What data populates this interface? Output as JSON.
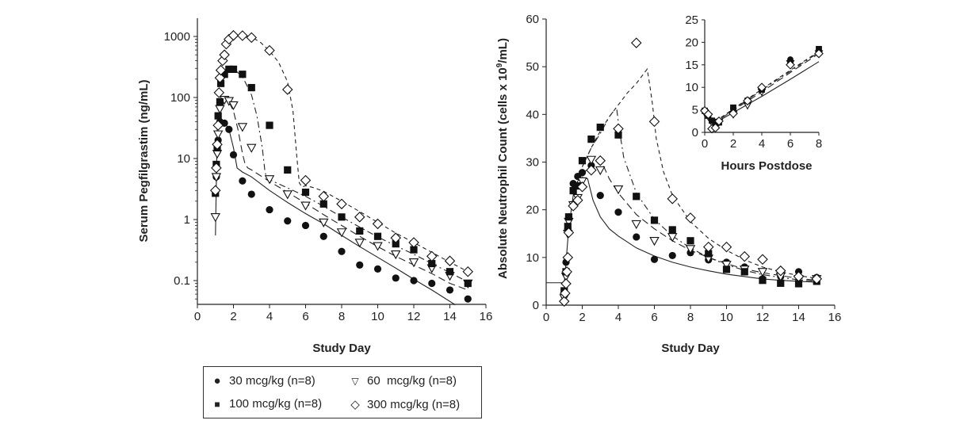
{
  "chart_data": [
    {
      "type": "scatter",
      "id": "pk",
      "title": "",
      "xlabel": "Study Day",
      "ylabel": "Serum Pegfilgrastim (ng/mL)",
      "yscale": "log",
      "xlim": [
        0,
        16
      ],
      "ylim": [
        0.04,
        2000
      ],
      "xticks": [
        0,
        2,
        4,
        6,
        8,
        10,
        12,
        14,
        16
      ],
      "yticks": [
        0.1,
        1,
        10,
        100,
        1000
      ],
      "ytick_labels": [
        "0.1",
        "1",
        "10",
        "100",
        "1000"
      ],
      "grid": false,
      "series": [
        {
          "name": "30 mcg/kg (n=8)",
          "marker": "circle",
          "x": [
            1,
            1.05,
            1.1,
            1.15,
            1.25,
            1.5,
            1.75,
            2,
            2.5,
            3,
            4,
            5,
            6,
            7,
            8,
            9,
            10,
            11,
            12,
            13,
            14,
            15
          ],
          "y": [
            3,
            5,
            13,
            20,
            40,
            38,
            30,
            11.5,
            4.3,
            2.6,
            1.45,
            0.95,
            0.8,
            0.53,
            0.3,
            0.18,
            0.155,
            0.11,
            0.1,
            0.09,
            0.07,
            0.05
          ],
          "fit_line": "solid",
          "fit_x": [
            1,
            1.1,
            1.3,
            1.5,
            1.75,
            2,
            2.2,
            2.5,
            3,
            4,
            5,
            6,
            7,
            8,
            9,
            10,
            11,
            12,
            13,
            14.3
          ],
          "fit_y": [
            0.55,
            30,
            45,
            40,
            30,
            15,
            7,
            6,
            5,
            3,
            1.9,
            1.25,
            0.85,
            0.55,
            0.36,
            0.24,
            0.16,
            0.105,
            0.07,
            0.04
          ]
        },
        {
          "name": "60 mcg/kg (n=8)",
          "marker": "triangle-down",
          "x": [
            1,
            1.05,
            1.1,
            1.15,
            1.25,
            1.5,
            1.75,
            2,
            2.5,
            3,
            4,
            5,
            6,
            7,
            8,
            9,
            10,
            11,
            12,
            13,
            14,
            15
          ],
          "y": [
            1.1,
            5,
            12,
            25,
            65,
            92,
            88,
            75,
            33,
            15,
            4.6,
            2.6,
            1.7,
            0.9,
            0.62,
            0.42,
            0.37,
            0.27,
            0.2,
            0.16,
            0.12,
            0.09
          ],
          "fit_line": "long-dash",
          "fit_x": [
            1.25,
            1.5,
            1.75,
            2,
            2.25,
            2.5,
            2.65,
            2.8,
            3,
            4,
            5,
            6,
            7,
            8,
            9,
            10,
            11,
            12,
            13,
            14,
            15
          ],
          "fit_y": [
            90,
            95,
            85,
            60,
            30,
            12,
            8,
            7,
            6.5,
            4.2,
            2.8,
            1.85,
            1.2,
            0.8,
            0.53,
            0.36,
            0.25,
            0.18,
            0.13,
            0.09,
            0.07
          ]
        },
        {
          "name": "100 mcg/kg (n=8)",
          "marker": "square",
          "x": [
            1,
            1.05,
            1.1,
            1.15,
            1.25,
            1.3,
            1.5,
            1.75,
            2,
            2.5,
            3,
            4,
            5,
            6,
            7,
            8,
            9,
            10,
            11,
            12,
            13,
            14,
            15
          ],
          "y": [
            2.7,
            8,
            15,
            50,
            85,
            170,
            240,
            290,
            290,
            240,
            145,
            35,
            6.5,
            2.8,
            1.8,
            1.1,
            0.65,
            0.53,
            0.4,
            0.32,
            0.19,
            0.14,
            0.09
          ],
          "fit_line": "dash-dot",
          "fit_x": [
            1.2,
            1.5,
            1.75,
            2,
            2.5,
            3,
            3.3,
            3.6,
            3.75,
            3.85,
            4,
            5,
            6,
            7,
            8,
            9,
            10,
            11,
            12,
            13,
            14,
            15
          ],
          "fit_y": [
            150,
            260,
            300,
            295,
            220,
            110,
            50,
            15,
            6,
            4.8,
            4.5,
            3.3,
            2.4,
            1.65,
            1.1,
            0.75,
            0.52,
            0.37,
            0.27,
            0.19,
            0.135,
            0.095
          ]
        },
        {
          "name": "300 mcg/kg (n=8)",
          "marker": "diamond",
          "x": [
            1,
            1.05,
            1.1,
            1.15,
            1.2,
            1.25,
            1.3,
            1.4,
            1.5,
            1.6,
            1.75,
            2,
            2.5,
            3,
            4,
            5,
            6,
            7,
            8,
            9,
            10,
            11,
            12,
            13,
            14,
            15
          ],
          "y": [
            3,
            7,
            17,
            35,
            120,
            210,
            280,
            400,
            500,
            750,
            900,
            1040,
            1030,
            960,
            590,
            135,
            4.4,
            2.4,
            1.8,
            1.1,
            0.85,
            0.5,
            0.42,
            0.25,
            0.21,
            0.14
          ],
          "fit_line": "short-dash",
          "fit_x": [
            1.5,
            1.75,
            2,
            2.5,
            3,
            3.5,
            4,
            4.5,
            5,
            5.3,
            5.5,
            5.65,
            5.8,
            6,
            6.5,
            7,
            8,
            9,
            10,
            11,
            12,
            13,
            14,
            15
          ],
          "fit_y": [
            700,
            950,
            1050,
            1050,
            980,
            800,
            580,
            380,
            180,
            60,
            12,
            4,
            3.4,
            3.6,
            3.3,
            2.9,
            2.0,
            1.35,
            0.9,
            0.6,
            0.42,
            0.29,
            0.2,
            0.14
          ]
        }
      ]
    },
    {
      "type": "scatter",
      "id": "anc",
      "title": "",
      "xlabel": "Study Day",
      "ylabel": "Absolute Neutrophil Count (cells x 10^9/mL)",
      "xlim": [
        0,
        16
      ],
      "ylim": [
        0,
        60
      ],
      "xticks": [
        0,
        2,
        4,
        6,
        8,
        10,
        12,
        14,
        16
      ],
      "yticks": [
        0,
        10,
        20,
        30,
        40,
        50,
        60
      ],
      "grid": false,
      "baseline": {
        "x": [
          0,
          1
        ],
        "y": 4.7
      },
      "series": [
        {
          "name": "30 mcg/kg (n=8)",
          "marker": "circle",
          "x": [
            1,
            1.1,
            1.2,
            1.25,
            1.5,
            1.75,
            2,
            2.5,
            3,
            4,
            5,
            6,
            7,
            8,
            9,
            10,
            11,
            12,
            13,
            14,
            15
          ],
          "y": [
            2,
            9,
            16,
            18.5,
            25.5,
            27,
            27.8,
            29.3,
            23,
            19.5,
            14.3,
            9.6,
            10.4,
            11,
            9.5,
            9,
            8,
            5.5,
            6,
            7,
            5.8
          ],
          "fit_line": "solid",
          "fit_x": [
            1,
            1.25,
            1.5,
            1.75,
            2,
            2.3,
            2.6,
            3,
            3.5,
            4,
            5,
            6,
            7,
            8,
            9,
            10,
            11,
            12,
            13,
            14,
            15
          ],
          "fit_y": [
            4.5,
            16,
            23,
            26,
            26.8,
            26.5,
            22,
            18.5,
            16,
            14.5,
            12,
            10.3,
            9,
            8,
            7.2,
            6.5,
            6,
            5.5,
            5.2,
            5,
            4.8
          ]
        },
        {
          "name": "60 mcg/kg (n=8)",
          "marker": "triangle-down",
          "x": [
            1,
            1.1,
            1.2,
            1.25,
            1.5,
            1.75,
            2,
            2.5,
            3,
            4,
            5,
            6,
            7,
            8,
            9,
            10,
            11,
            12,
            13,
            14,
            15
          ],
          "y": [
            1.5,
            6,
            15,
            17.5,
            21,
            22.5,
            26,
            30.5,
            28.3,
            24.3,
            17,
            13.5,
            14.3,
            11.8,
            9.8,
            8.5,
            7.5,
            7,
            6,
            5.5,
            5.5
          ],
          "fit_line": "long-dash",
          "fit_x": [
            2,
            2.5,
            3,
            3.2,
            3.5,
            4,
            5,
            6,
            7,
            8,
            9,
            10,
            11,
            12,
            13,
            14,
            15
          ],
          "fit_y": [
            27,
            30,
            30.5,
            29,
            26.5,
            23.5,
            19,
            16,
            13.5,
            11.5,
            10,
            8.7,
            7.6,
            6.8,
            6.2,
            5.6,
            5.2
          ]
        },
        {
          "name": "100 mcg/kg (n=8)",
          "marker": "square",
          "x": [
            1,
            1.1,
            1.2,
            1.25,
            1.5,
            1.75,
            2,
            2.5,
            3,
            4,
            5,
            6,
            7,
            8,
            9,
            10,
            11,
            12,
            13,
            14,
            15
          ],
          "y": [
            3,
            7,
            16.5,
            18.5,
            24,
            25,
            30.3,
            34.8,
            37.3,
            35.7,
            22.8,
            17.8,
            15.8,
            13.5,
            10.8,
            7.5,
            7,
            5.2,
            4.6,
            4.5,
            5
          ],
          "fit_line": "dash-dot",
          "fit_x": [
            2,
            2.5,
            3,
            3.5,
            3.9,
            4.05,
            4.3,
            5,
            6,
            7,
            8,
            9,
            10,
            11,
            12,
            13,
            14,
            15
          ],
          "fit_y": [
            29,
            33,
            36,
            39.5,
            41.5,
            37,
            31,
            23.5,
            18,
            14.5,
            12,
            10,
            8.5,
            7.3,
            6.4,
            5.8,
            5.3,
            5
          ]
        },
        {
          "name": "300 mcg/kg (n=8)",
          "marker": "diamond",
          "x": [
            1,
            1.05,
            1.1,
            1.15,
            1.2,
            1.25,
            1.5,
            1.75,
            2,
            2.5,
            3,
            4,
            5,
            6,
            7,
            8,
            9,
            10,
            11,
            12,
            13,
            14,
            15
          ],
          "y": [
            0.8,
            2.5,
            4.5,
            7,
            10,
            15.2,
            20.8,
            22,
            24.8,
            28.3,
            30.3,
            37,
            55,
            38.5,
            22.3,
            18.3,
            12.2,
            12.2,
            10.2,
            9.6,
            7.2,
            6,
            5.5
          ],
          "fit_line": "short-dash",
          "fit_x": [
            2,
            2.5,
            3,
            3.5,
            4,
            4.5,
            5,
            5.3,
            5.6,
            5.75,
            5.9,
            6.1,
            6.5,
            7,
            8,
            9,
            10,
            11,
            12,
            13,
            14,
            15
          ],
          "fit_y": [
            29,
            33,
            36.5,
            39.5,
            42,
            44.5,
            46.5,
            48,
            49.5,
            46,
            42,
            35,
            28,
            23,
            17.5,
            14,
            11.5,
            9.5,
            8,
            7,
            6.2,
            5.6
          ]
        }
      ]
    },
    {
      "type": "scatter",
      "id": "inset",
      "title": "",
      "xlabel": "Hours Postdose",
      "ylabel": "",
      "xlim": [
        0,
        8
      ],
      "ylim": [
        0,
        25
      ],
      "xticks": [
        0,
        2,
        4,
        6,
        8
      ],
      "yticks": [
        0,
        5,
        10,
        15,
        20,
        25
      ],
      "grid": false,
      "series": [
        {
          "name": "30 mcg/kg (n=8)",
          "marker": "circle",
          "x": [
            0,
            0.25,
            0.5,
            0.75,
            1,
            2,
            3,
            4,
            6,
            8
          ],
          "y": [
            4.6,
            3.8,
            2.5,
            2.0,
            2.4,
            5.3,
            7.2,
            9.4,
            16.2,
            18.2
          ],
          "fit_line": "solid",
          "fit_x": [
            0,
            0.5,
            1,
            2,
            4,
            6,
            8
          ],
          "fit_y": [
            4.5,
            2.3,
            2.6,
            4.4,
            8.0,
            11.8,
            15.7
          ]
        },
        {
          "name": "60 mcg/kg (n=8)",
          "marker": "triangle-down",
          "x": [
            0,
            0.25,
            0.5,
            0.75,
            1,
            2,
            3,
            4,
            6,
            8
          ],
          "y": [
            4.4,
            3.5,
            2.2,
            1.5,
            2.3,
            4.0,
            6.0,
            9.0,
            15.3,
            17.5
          ],
          "fit_line": "long-dash",
          "fit_x": [
            0,
            0.5,
            1,
            2,
            4,
            6,
            8
          ],
          "fit_y": [
            4.5,
            2.4,
            2.8,
            4.9,
            9.0,
            13.3,
            17.5
          ]
        },
        {
          "name": "100 mcg/kg (n=8)",
          "marker": "square",
          "x": [
            0,
            0.25,
            0.5,
            0.75,
            1,
            2,
            3,
            4,
            6,
            8
          ],
          "y": [
            4.8,
            3.7,
            2.6,
            2.0,
            2.2,
            5.5,
            7.0,
            9.5,
            15.4,
            18.5
          ],
          "fit_line": "dash-dot",
          "fit_x": [
            0,
            0.5,
            1,
            2,
            4,
            6,
            8
          ],
          "fit_y": [
            4.5,
            2.5,
            2.9,
            5.1,
            9.4,
            13.6,
            17.8
          ]
        },
        {
          "name": "300 mcg/kg (n=8)",
          "marker": "diamond",
          "x": [
            0,
            0.25,
            0.5,
            0.75,
            1,
            2,
            3,
            4,
            6,
            8
          ],
          "y": [
            4.8,
            4.0,
            0.8,
            1.0,
            2.5,
            4.2,
            7.0,
            10.0,
            15.0,
            17.5
          ],
          "fit_line": "short-dash",
          "fit_x": [
            0,
            0.5,
            1,
            2,
            4,
            6,
            8
          ],
          "fit_y": [
            4.5,
            2.5,
            3.0,
            5.2,
            9.6,
            13.8,
            18.0
          ]
        }
      ]
    }
  ],
  "legend": {
    "placement": "bottom-left",
    "items": [
      {
        "symbol": "●",
        "label": "30 mcg/kg (n=8)"
      },
      {
        "symbol": "▽",
        "label": "60  mcg/kg (n=8)"
      },
      {
        "symbol": "■",
        "label": "100 mcg/kg (n=8)"
      },
      {
        "symbol": "◇",
        "label": "300 mcg/kg (n=8)"
      }
    ]
  },
  "labels": {
    "left_xlabel": "Study Day",
    "left_ylabel": "Serum Pegfilgrastim (ng/mL)",
    "right_xlabel": "Study Day",
    "right_ylabel_main": "Absolute Neutrophil Count (cells x 10",
    "right_ylabel_sup": "9",
    "right_ylabel_end": "/mL)",
    "inset_xlabel": "Hours Postdose"
  },
  "colors": {
    "ink": "#222222",
    "marker": "#111111"
  }
}
